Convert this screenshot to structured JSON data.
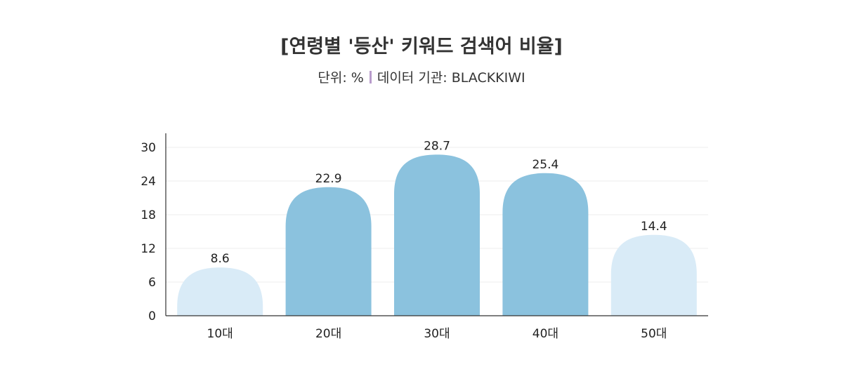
{
  "chart_data": {
    "type": "bar",
    "title": "[연령별 '등산' 키워드 검색어 비율]",
    "subtitle_unit": "단위: %",
    "subtitle_source": "데이터 기관: BLACKKIWI",
    "categories": [
      "10대",
      "20대",
      "30대",
      "40대",
      "50대"
    ],
    "values": [
      8.6,
      22.9,
      28.7,
      25.4,
      14.4
    ],
    "data_labels": [
      "8.6",
      "22.9",
      "28.7",
      "25.4",
      "14.4"
    ],
    "yticks": [
      0,
      6,
      12,
      18,
      24,
      30
    ],
    "ylim": [
      0,
      30
    ],
    "grid": true,
    "colors": [
      "#d9ebf7",
      "#8bc2de",
      "#8bc2de",
      "#8bc2de",
      "#d9ebf7"
    ],
    "separator_color": "#b99ccc"
  }
}
